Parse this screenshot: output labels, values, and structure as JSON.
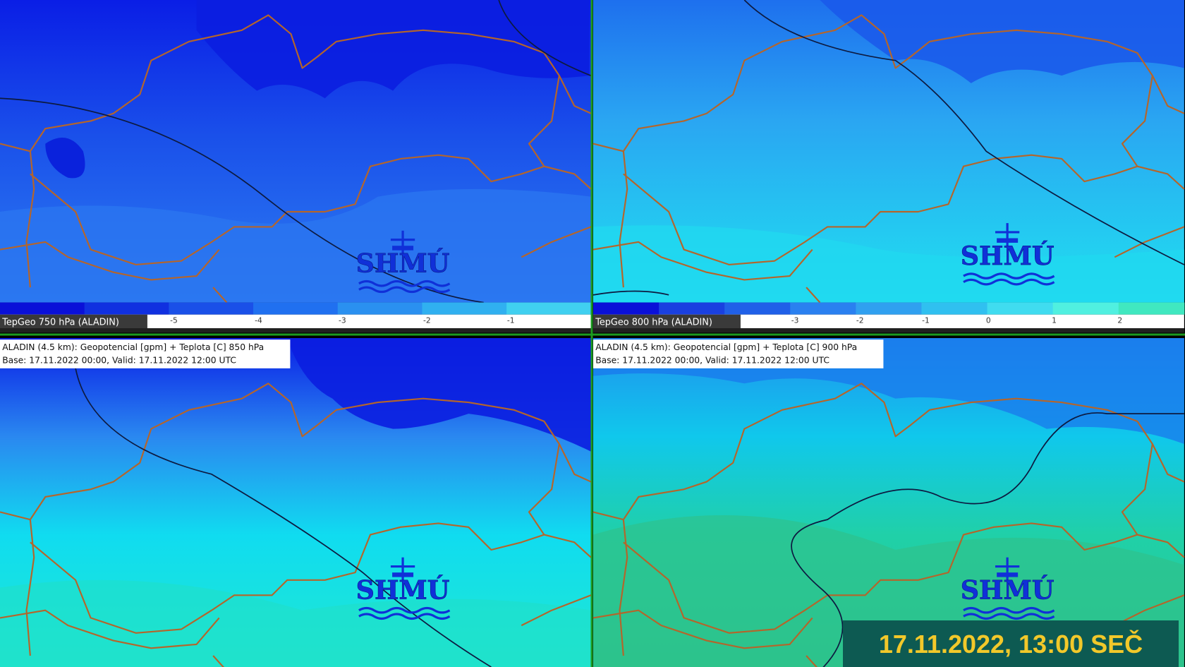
{
  "panels": [
    {
      "colorbar_label": "TepGeo 750 hPa (ALADIN)",
      "colorbar_ticks": [
        "-5",
        "-4",
        "-3",
        "-2",
        "-1"
      ],
      "logo": "SHMÚ"
    },
    {
      "colorbar_label": "TepGeo 800 hPa (ALADIN)",
      "colorbar_ticks": [
        "-3",
        "-2",
        "-1",
        "0",
        "1",
        "2"
      ],
      "logo": "SHMÚ"
    },
    {
      "header": [
        "ALADIN (4.5 km): Geopotencial [gpm] + Teplota [C] 850 hPa",
        "Base: 17.11.2022 00:00, Valid: 17.11.2022 12:00 UTC"
      ],
      "logo": "SHMÚ"
    },
    {
      "header": [
        "ALADIN (4.5 km): Geopotencial [gpm] + Teplota [C] 900 hPa",
        "Base: 17.11.2022 00:00, Valid: 17.11.2022 12:00 UTC"
      ],
      "logo": "SHMÚ"
    }
  ],
  "timestamp": "17.11.2022, 13:00 SEČ"
}
